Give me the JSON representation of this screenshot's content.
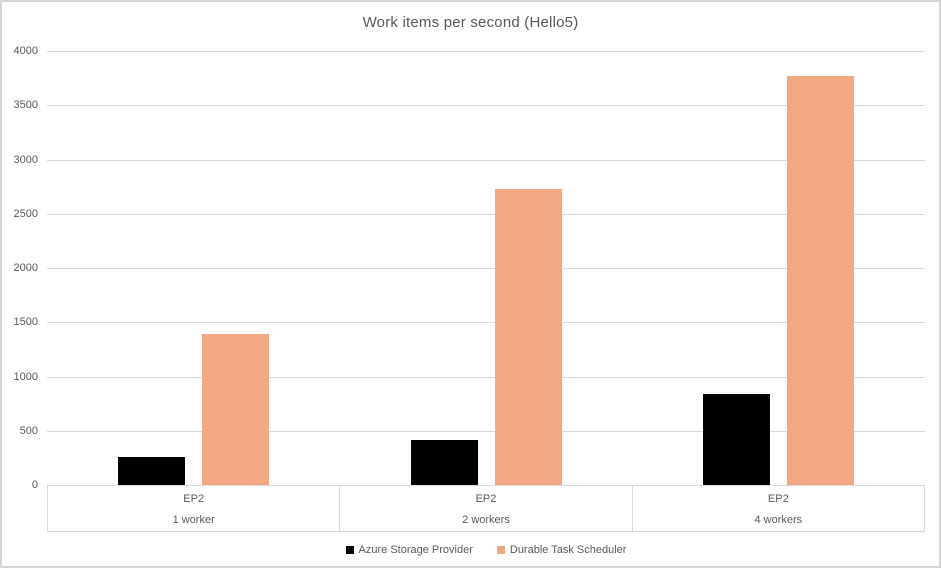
{
  "chart_data": {
    "type": "bar",
    "title": "Work items per second (Hello5)",
    "categories": [
      {
        "machine": "EP2",
        "workers": "1 worker"
      },
      {
        "machine": "EP2",
        "workers": "2 workers"
      },
      {
        "machine": "EP2",
        "workers": "4 workers"
      }
    ],
    "series": [
      {
        "name": "Azure Storage Provider",
        "color": "#000000",
        "values": [
          260,
          415,
          840
        ]
      },
      {
        "name": "Durable Task Scheduler",
        "color": "#F2A983",
        "values": [
          1390,
          2730,
          3770
        ]
      }
    ],
    "y_axis": {
      "min": 0,
      "max": 4000,
      "step": 500,
      "tick_labels": [
        "4000",
        "3500",
        "3000",
        "2500",
        "2000",
        "1500",
        "1000",
        "500",
        "0"
      ]
    },
    "grid": true,
    "legend_position": "bottom"
  },
  "style_colors": {
    "series_azure_storage_provider": "#000000",
    "series_durable_task_scheduler": "#F2A983",
    "chart_text": "#595959",
    "gridline": "#D9D9D9"
  }
}
